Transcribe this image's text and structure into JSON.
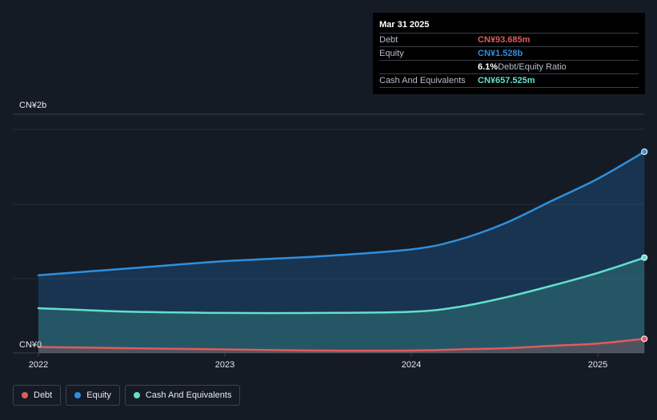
{
  "chart_data": {
    "type": "area",
    "y_top_label": "CN¥2b",
    "y_bottom_label": "CN¥0",
    "ylim": [
      0,
      1.9
    ],
    "x_ticks": [
      "2022",
      "2023",
      "2024",
      "2025"
    ],
    "series": [
      {
        "name": "Equity",
        "color": "#2f8fde",
        "points": [
          [
            2022.0,
            0.66
          ],
          [
            2022.5,
            0.72
          ],
          [
            2023.0,
            0.78
          ],
          [
            2023.5,
            0.82
          ],
          [
            2024.0,
            0.88
          ],
          [
            2024.25,
            0.96
          ],
          [
            2024.5,
            1.1
          ],
          [
            2024.75,
            1.29
          ],
          [
            2025.0,
            1.48
          ],
          [
            2025.25,
            1.71
          ]
        ]
      },
      {
        "name": "Cash And Equivalents",
        "color": "#62e0cc",
        "points": [
          [
            2022.0,
            0.38
          ],
          [
            2022.5,
            0.35
          ],
          [
            2023.0,
            0.34
          ],
          [
            2023.5,
            0.34
          ],
          [
            2024.0,
            0.35
          ],
          [
            2024.25,
            0.39
          ],
          [
            2024.5,
            0.47
          ],
          [
            2024.75,
            0.57
          ],
          [
            2025.0,
            0.68
          ],
          [
            2025.25,
            0.81
          ]
        ]
      },
      {
        "name": "Debt",
        "color": "#e35a5a",
        "points": [
          [
            2022.0,
            0.05
          ],
          [
            2022.5,
            0.04
          ],
          [
            2023.0,
            0.03
          ],
          [
            2023.5,
            0.02
          ],
          [
            2024.0,
            0.02
          ],
          [
            2024.25,
            0.03
          ],
          [
            2024.5,
            0.04
          ],
          [
            2024.75,
            0.06
          ],
          [
            2025.0,
            0.08
          ],
          [
            2025.25,
            0.12
          ]
        ]
      }
    ]
  },
  "tooltip": {
    "date": "Mar 31 2025",
    "rows": [
      {
        "label": "Debt",
        "value": "CN¥93.685m",
        "color": "#e35a5a"
      },
      {
        "label": "Equity",
        "value": "CN¥1.528b",
        "color": "#2f8fde"
      },
      {
        "label": "",
        "value": "6.1%",
        "suffix": " Debt/Equity Ratio",
        "color": "#ffffff"
      },
      {
        "label": "Cash And Equivalents",
        "value": "CN¥657.525m",
        "color": "#62e0cc"
      }
    ]
  },
  "legend": [
    {
      "label": "Debt",
      "color": "#e35a5a"
    },
    {
      "label": "Equity",
      "color": "#2f8fde"
    },
    {
      "label": "Cash And Equivalents",
      "color": "#62e0cc"
    }
  ]
}
